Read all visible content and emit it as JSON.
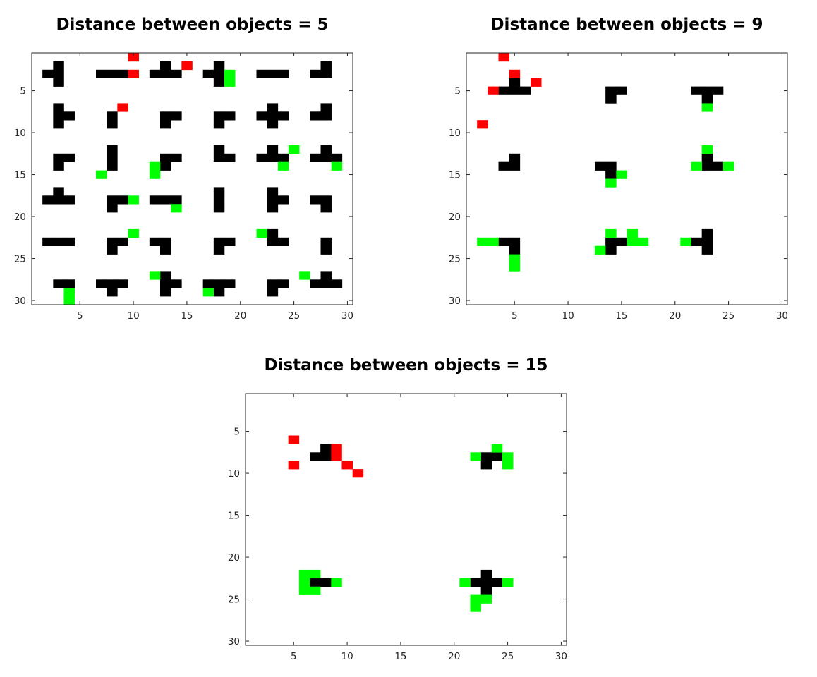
{
  "colors": {
    "obstacle": "#000000",
    "red": "#ff0000",
    "green": "#00ff00",
    "background": "#ffffff"
  },
  "chart_data": [
    {
      "type": "heatmap",
      "title": "Distance between objects = 5",
      "xlim": [
        0.5,
        30.5
      ],
      "ylim": [
        0.5,
        30.5
      ],
      "y_reversed": true,
      "xticks": [
        5,
        10,
        15,
        20,
        25,
        30
      ],
      "yticks": [
        5,
        10,
        15,
        20,
        25,
        30
      ],
      "black_cells": [
        [
          3,
          2
        ],
        [
          2,
          3
        ],
        [
          3,
          3
        ],
        [
          3,
          4
        ],
        [
          7,
          3
        ],
        [
          8,
          3
        ],
        [
          9,
          3
        ],
        [
          13,
          2
        ],
        [
          12,
          3
        ],
        [
          13,
          3
        ],
        [
          14,
          3
        ],
        [
          18,
          2
        ],
        [
          17,
          3
        ],
        [
          18,
          3
        ],
        [
          18,
          4
        ],
        [
          22,
          3
        ],
        [
          23,
          3
        ],
        [
          24,
          3
        ],
        [
          28,
          2
        ],
        [
          27,
          3
        ],
        [
          28,
          3
        ],
        [
          3,
          7
        ],
        [
          3,
          8
        ],
        [
          4,
          8
        ],
        [
          3,
          9
        ],
        [
          8,
          8
        ],
        [
          8,
          9
        ],
        [
          13,
          8
        ],
        [
          14,
          8
        ],
        [
          13,
          9
        ],
        [
          18,
          8
        ],
        [
          19,
          8
        ],
        [
          18,
          9
        ],
        [
          23,
          7
        ],
        [
          22,
          8
        ],
        [
          23,
          8
        ],
        [
          24,
          8
        ],
        [
          23,
          9
        ],
        [
          28,
          7
        ],
        [
          27,
          8
        ],
        [
          28,
          8
        ],
        [
          3,
          13
        ],
        [
          4,
          13
        ],
        [
          3,
          14
        ],
        [
          8,
          12
        ],
        [
          8,
          13
        ],
        [
          8,
          14
        ],
        [
          13,
          13
        ],
        [
          14,
          13
        ],
        [
          13,
          14
        ],
        [
          18,
          12
        ],
        [
          18,
          13
        ],
        [
          19,
          13
        ],
        [
          23,
          12
        ],
        [
          22,
          13
        ],
        [
          23,
          13
        ],
        [
          24,
          13
        ],
        [
          28,
          12
        ],
        [
          27,
          13
        ],
        [
          28,
          13
        ],
        [
          29,
          13
        ],
        [
          3,
          17
        ],
        [
          2,
          18
        ],
        [
          3,
          18
        ],
        [
          4,
          18
        ],
        [
          8,
          18
        ],
        [
          9,
          18
        ],
        [
          8,
          19
        ],
        [
          12,
          18
        ],
        [
          13,
          18
        ],
        [
          14,
          18
        ],
        [
          18,
          17
        ],
        [
          18,
          18
        ],
        [
          18,
          19
        ],
        [
          23,
          17
        ],
        [
          23,
          18
        ],
        [
          24,
          18
        ],
        [
          23,
          19
        ],
        [
          27,
          18
        ],
        [
          28,
          18
        ],
        [
          28,
          19
        ],
        [
          2,
          23
        ],
        [
          3,
          23
        ],
        [
          4,
          23
        ],
        [
          8,
          23
        ],
        [
          9,
          23
        ],
        [
          8,
          24
        ],
        [
          12,
          23
        ],
        [
          13,
          23
        ],
        [
          13,
          24
        ],
        [
          18,
          23
        ],
        [
          19,
          23
        ],
        [
          18,
          24
        ],
        [
          23,
          22
        ],
        [
          23,
          23
        ],
        [
          24,
          23
        ],
        [
          28,
          23
        ],
        [
          28,
          24
        ],
        [
          3,
          28
        ],
        [
          4,
          28
        ],
        [
          7,
          28
        ],
        [
          8,
          28
        ],
        [
          9,
          28
        ],
        [
          8,
          29
        ],
        [
          13,
          27
        ],
        [
          13,
          28
        ],
        [
          14,
          28
        ],
        [
          13,
          29
        ],
        [
          17,
          28
        ],
        [
          18,
          28
        ],
        [
          19,
          28
        ],
        [
          18,
          29
        ],
        [
          23,
          28
        ],
        [
          24,
          28
        ],
        [
          23,
          29
        ],
        [
          28,
          27
        ],
        [
          27,
          28
        ],
        [
          28,
          28
        ],
        [
          29,
          28
        ]
      ],
      "red_cells": [
        [
          10,
          1
        ],
        [
          15,
          2
        ],
        [
          10,
          3
        ],
        [
          9,
          7
        ]
      ],
      "green_cells": [
        [
          19,
          3
        ],
        [
          19,
          4
        ],
        [
          25,
          12
        ],
        [
          12,
          14
        ],
        [
          24,
          14
        ],
        [
          29,
          14
        ],
        [
          7,
          15
        ],
        [
          12,
          15
        ],
        [
          10,
          18
        ],
        [
          14,
          19
        ],
        [
          10,
          22
        ],
        [
          22,
          22
        ],
        [
          12,
          27
        ],
        [
          26,
          27
        ],
        [
          17,
          29
        ],
        [
          4,
          29
        ],
        [
          4,
          30
        ]
      ]
    },
    {
      "type": "heatmap",
      "title": "Distance between objects = 9",
      "xlim": [
        0.5,
        30.5
      ],
      "ylim": [
        0.5,
        30.5
      ],
      "y_reversed": true,
      "xticks": [
        5,
        10,
        15,
        20,
        25,
        30
      ],
      "yticks": [
        5,
        10,
        15,
        20,
        25,
        30
      ],
      "black_cells": [
        [
          5,
          4
        ],
        [
          4,
          5
        ],
        [
          5,
          5
        ],
        [
          6,
          5
        ],
        [
          14,
          5
        ],
        [
          15,
          5
        ],
        [
          14,
          6
        ],
        [
          22,
          5
        ],
        [
          23,
          5
        ],
        [
          24,
          5
        ],
        [
          23,
          6
        ],
        [
          5,
          13
        ],
        [
          4,
          14
        ],
        [
          5,
          14
        ],
        [
          13,
          14
        ],
        [
          14,
          14
        ],
        [
          14,
          15
        ],
        [
          23,
          13
        ],
        [
          23,
          14
        ],
        [
          24,
          14
        ],
        [
          4,
          23
        ],
        [
          5,
          23
        ],
        [
          5,
          24
        ],
        [
          14,
          23
        ],
        [
          15,
          23
        ],
        [
          14,
          24
        ],
        [
          23,
          22
        ],
        [
          22,
          23
        ],
        [
          23,
          23
        ],
        [
          23,
          24
        ]
      ],
      "red_cells": [
        [
          4,
          1
        ],
        [
          5,
          3
        ],
        [
          7,
          4
        ],
        [
          3,
          5
        ],
        [
          2,
          9
        ]
      ],
      "green_cells": [
        [
          23,
          7
        ],
        [
          23,
          12
        ],
        [
          22,
          14
        ],
        [
          25,
          14
        ],
        [
          15,
          15
        ],
        [
          14,
          16
        ],
        [
          2,
          23
        ],
        [
          3,
          23
        ],
        [
          5,
          25
        ],
        [
          5,
          26
        ],
        [
          14,
          22
        ],
        [
          16,
          22
        ],
        [
          16,
          23
        ],
        [
          17,
          23
        ],
        [
          13,
          24
        ],
        [
          21,
          23
        ]
      ]
    },
    {
      "type": "heatmap",
      "title": "Distance between objects = 15",
      "xlim": [
        0.5,
        30.5
      ],
      "ylim": [
        0.5,
        30.5
      ],
      "y_reversed": true,
      "xticks": [
        5,
        10,
        15,
        20,
        25,
        30
      ],
      "yticks": [
        5,
        10,
        15,
        20,
        25,
        30
      ],
      "black_cells": [
        [
          8,
          7
        ],
        [
          7,
          8
        ],
        [
          8,
          8
        ],
        [
          23,
          8
        ],
        [
          24,
          8
        ],
        [
          23,
          9
        ],
        [
          7,
          23
        ],
        [
          8,
          23
        ],
        [
          23,
          22
        ],
        [
          22,
          23
        ],
        [
          23,
          23
        ],
        [
          24,
          23
        ],
        [
          23,
          24
        ]
      ],
      "red_cells": [
        [
          5,
          6
        ],
        [
          9,
          7
        ],
        [
          9,
          8
        ],
        [
          5,
          9
        ],
        [
          10,
          9
        ],
        [
          11,
          10
        ]
      ],
      "green_cells": [
        [
          24,
          7
        ],
        [
          22,
          8
        ],
        [
          25,
          8
        ],
        [
          25,
          9
        ],
        [
          6,
          22
        ],
        [
          7,
          22
        ],
        [
          6,
          23
        ],
        [
          9,
          23
        ],
        [
          6,
          24
        ],
        [
          7,
          24
        ],
        [
          21,
          23
        ],
        [
          25,
          23
        ],
        [
          22,
          25
        ],
        [
          23,
          25
        ],
        [
          22,
          26
        ]
      ]
    }
  ]
}
